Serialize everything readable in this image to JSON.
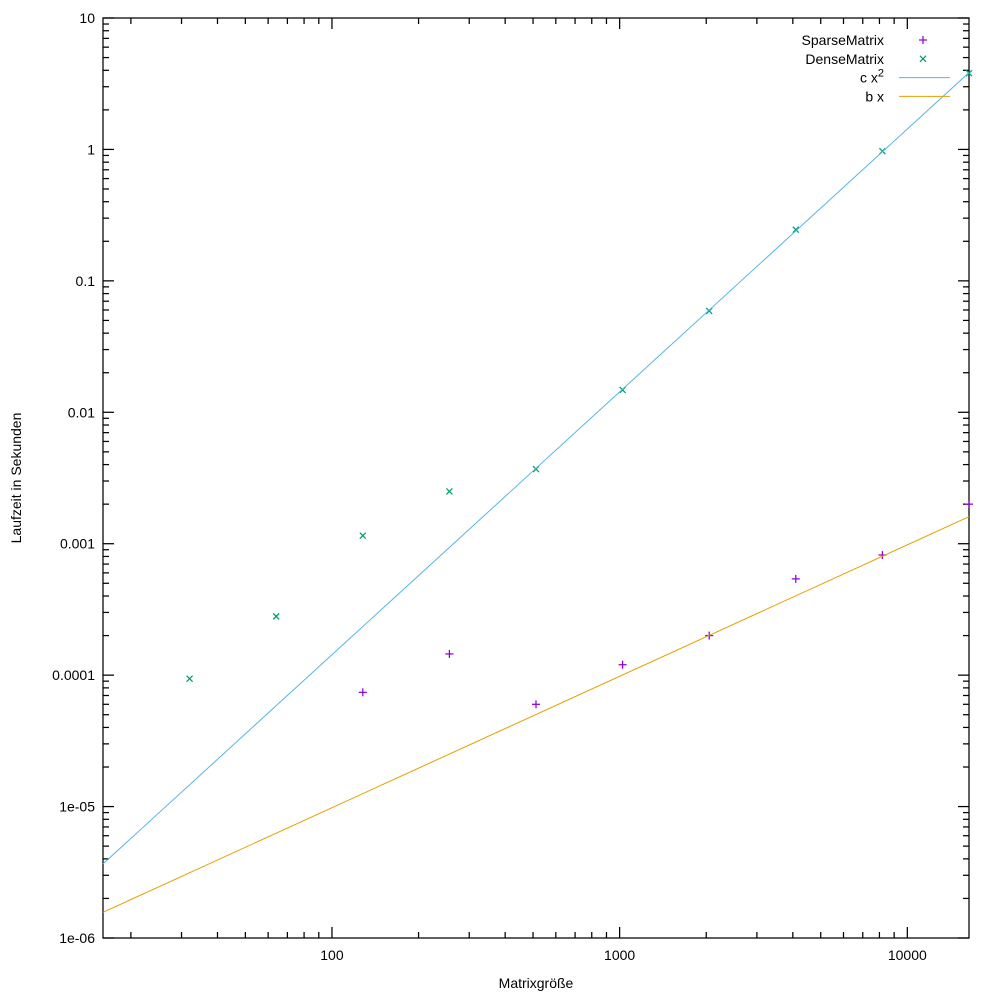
{
  "chart_data": {
    "type": "scatter",
    "title": "",
    "xlabel": "Matrixgröße",
    "ylabel": "Laufzeit in Sekunden",
    "x_scale": "log",
    "y_scale": "log",
    "xlim": [
      16,
      16384
    ],
    "ylim": [
      1e-06,
      10
    ],
    "grid": false,
    "background": "#ffffff",
    "border_color": "#000000",
    "x_ticks": [
      {
        "value": 100,
        "label": "100"
      },
      {
        "value": 1000,
        "label": "1000"
      },
      {
        "value": 10000,
        "label": "10000"
      }
    ],
    "y_ticks": [
      {
        "value": 10,
        "label": "10"
      },
      {
        "value": 1,
        "label": "1"
      },
      {
        "value": 0.1,
        "label": "0.1"
      },
      {
        "value": 0.01,
        "label": "0.01"
      },
      {
        "value": 0.001,
        "label": "0.001"
      },
      {
        "value": 0.0001,
        "label": "0.0001"
      },
      {
        "value": 1e-05,
        "label": "1e-05"
      },
      {
        "value": 1e-06,
        "label": "1e-06"
      }
    ],
    "series": [
      {
        "name": "SparseMatrix",
        "type": "points",
        "marker": "plus",
        "color": "#9400d3",
        "points": [
          [
            128,
            7.4e-05
          ],
          [
            256,
            0.000145
          ],
          [
            512,
            6e-05
          ],
          [
            1024,
            0.00012
          ],
          [
            2048,
            0.0002
          ],
          [
            4096,
            0.00054
          ],
          [
            8192,
            0.00082
          ],
          [
            16384,
            0.002
          ]
        ]
      },
      {
        "name": "DenseMatrix",
        "type": "points",
        "marker": "cross",
        "color": "#009e73",
        "points": [
          [
            32,
            9.4e-05
          ],
          [
            64,
            0.00028
          ],
          [
            128,
            0.00115
          ],
          [
            256,
            0.0025
          ],
          [
            512,
            0.0037
          ],
          [
            1024,
            0.0148
          ],
          [
            2048,
            0.059
          ],
          [
            4096,
            0.245
          ],
          [
            8192,
            0.97
          ],
          [
            16384,
            3.8
          ]
        ]
      },
      {
        "name": "c x^2",
        "type": "line",
        "color": "#56b4e9",
        "coeff": 1.43e-08,
        "power": 2
      },
      {
        "name": "b x",
        "type": "line",
        "color": "#e69f00",
        "coeff": 9.8e-08,
        "power": 1
      }
    ],
    "legend": {
      "position": "top-right-inside",
      "entries": [
        {
          "label": "SparseMatrix",
          "series": 0
        },
        {
          "label": "DenseMatrix",
          "series": 1
        },
        {
          "label": "c x",
          "sup": "2",
          "series": 2
        },
        {
          "label": "b x",
          "series": 3
        }
      ]
    }
  }
}
